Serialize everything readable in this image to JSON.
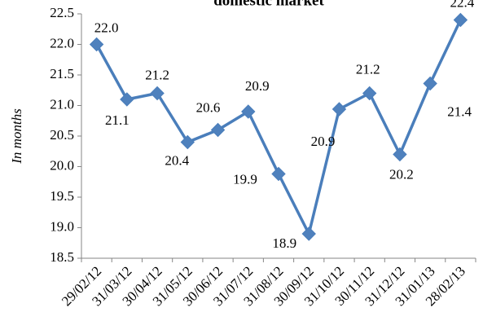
{
  "chart_data": {
    "type": "line",
    "title": "domestic market",
    "y_label": "In months",
    "categories": [
      "29/02/12",
      "31/03/12",
      "30/04/12",
      "31/05/12",
      "30/06/12",
      "31/07/12",
      "31/08/12",
      "30/09/12",
      "31/10/12",
      "30/11/12",
      "31/12/12",
      "31/01/13",
      "28/02/13"
    ],
    "series": [
      {
        "name": "In months",
        "color": "#4a7ebb",
        "values": [
          22.0,
          21.1,
          21.2,
          20.4,
          20.6,
          20.9,
          19.88,
          18.9,
          20.94,
          21.2,
          20.2,
          21.36,
          22.4
        ],
        "value_labels": [
          "22.0",
          "21.1",
          "21.2",
          "20.4",
          "20.6",
          "20.9",
          "19.9",
          "18.9",
          "20.9",
          "21.2",
          "20.2",
          "21.4",
          "22.4"
        ]
      }
    ],
    "ylim": [
      18.5,
      22.5
    ],
    "yticks": [
      18.5,
      {
        "value": 19,
        "label": "19.0"
      },
      19.5,
      {
        "value": 20,
        "label": "20.0"
      },
      20.5,
      {
        "value": 21,
        "label": "21.0"
      },
      21.5,
      {
        "value": 22,
        "label": "22.0"
      },
      22.5
    ]
  }
}
